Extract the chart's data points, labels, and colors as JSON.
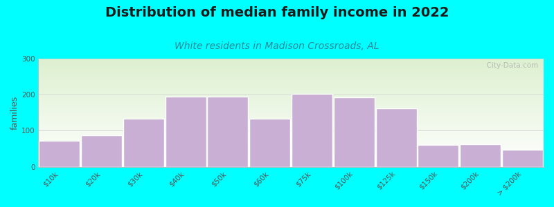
{
  "title": "Distribution of median family income in 2022",
  "subtitle": "White residents in Madison Crossroads, AL",
  "categories": [
    "$10k",
    "$20k",
    "$30k",
    "$40k",
    "$50k",
    "$60k",
    "$75k",
    "$100k",
    "$125k",
    "$150k",
    "$200k",
    "> $200k"
  ],
  "values": [
    72,
    88,
    133,
    195,
    195,
    133,
    202,
    193,
    163,
    60,
    63,
    48
  ],
  "bar_color": "#c9afd4",
  "bar_edge_color": "#ffffff",
  "background_outer": "#00ffff",
  "background_inner_top": "#ddf0d0",
  "background_inner_bottom": "#ffffff",
  "title_color": "#1a1a1a",
  "subtitle_color": "#2a8a9a",
  "ylabel": "families",
  "ylim": [
    0,
    300
  ],
  "yticks": [
    0,
    100,
    200,
    300
  ],
  "title_fontsize": 14,
  "subtitle_fontsize": 10,
  "ylabel_fontsize": 9,
  "tick_fontsize": 7.5,
  "watermark": "City-Data.com"
}
